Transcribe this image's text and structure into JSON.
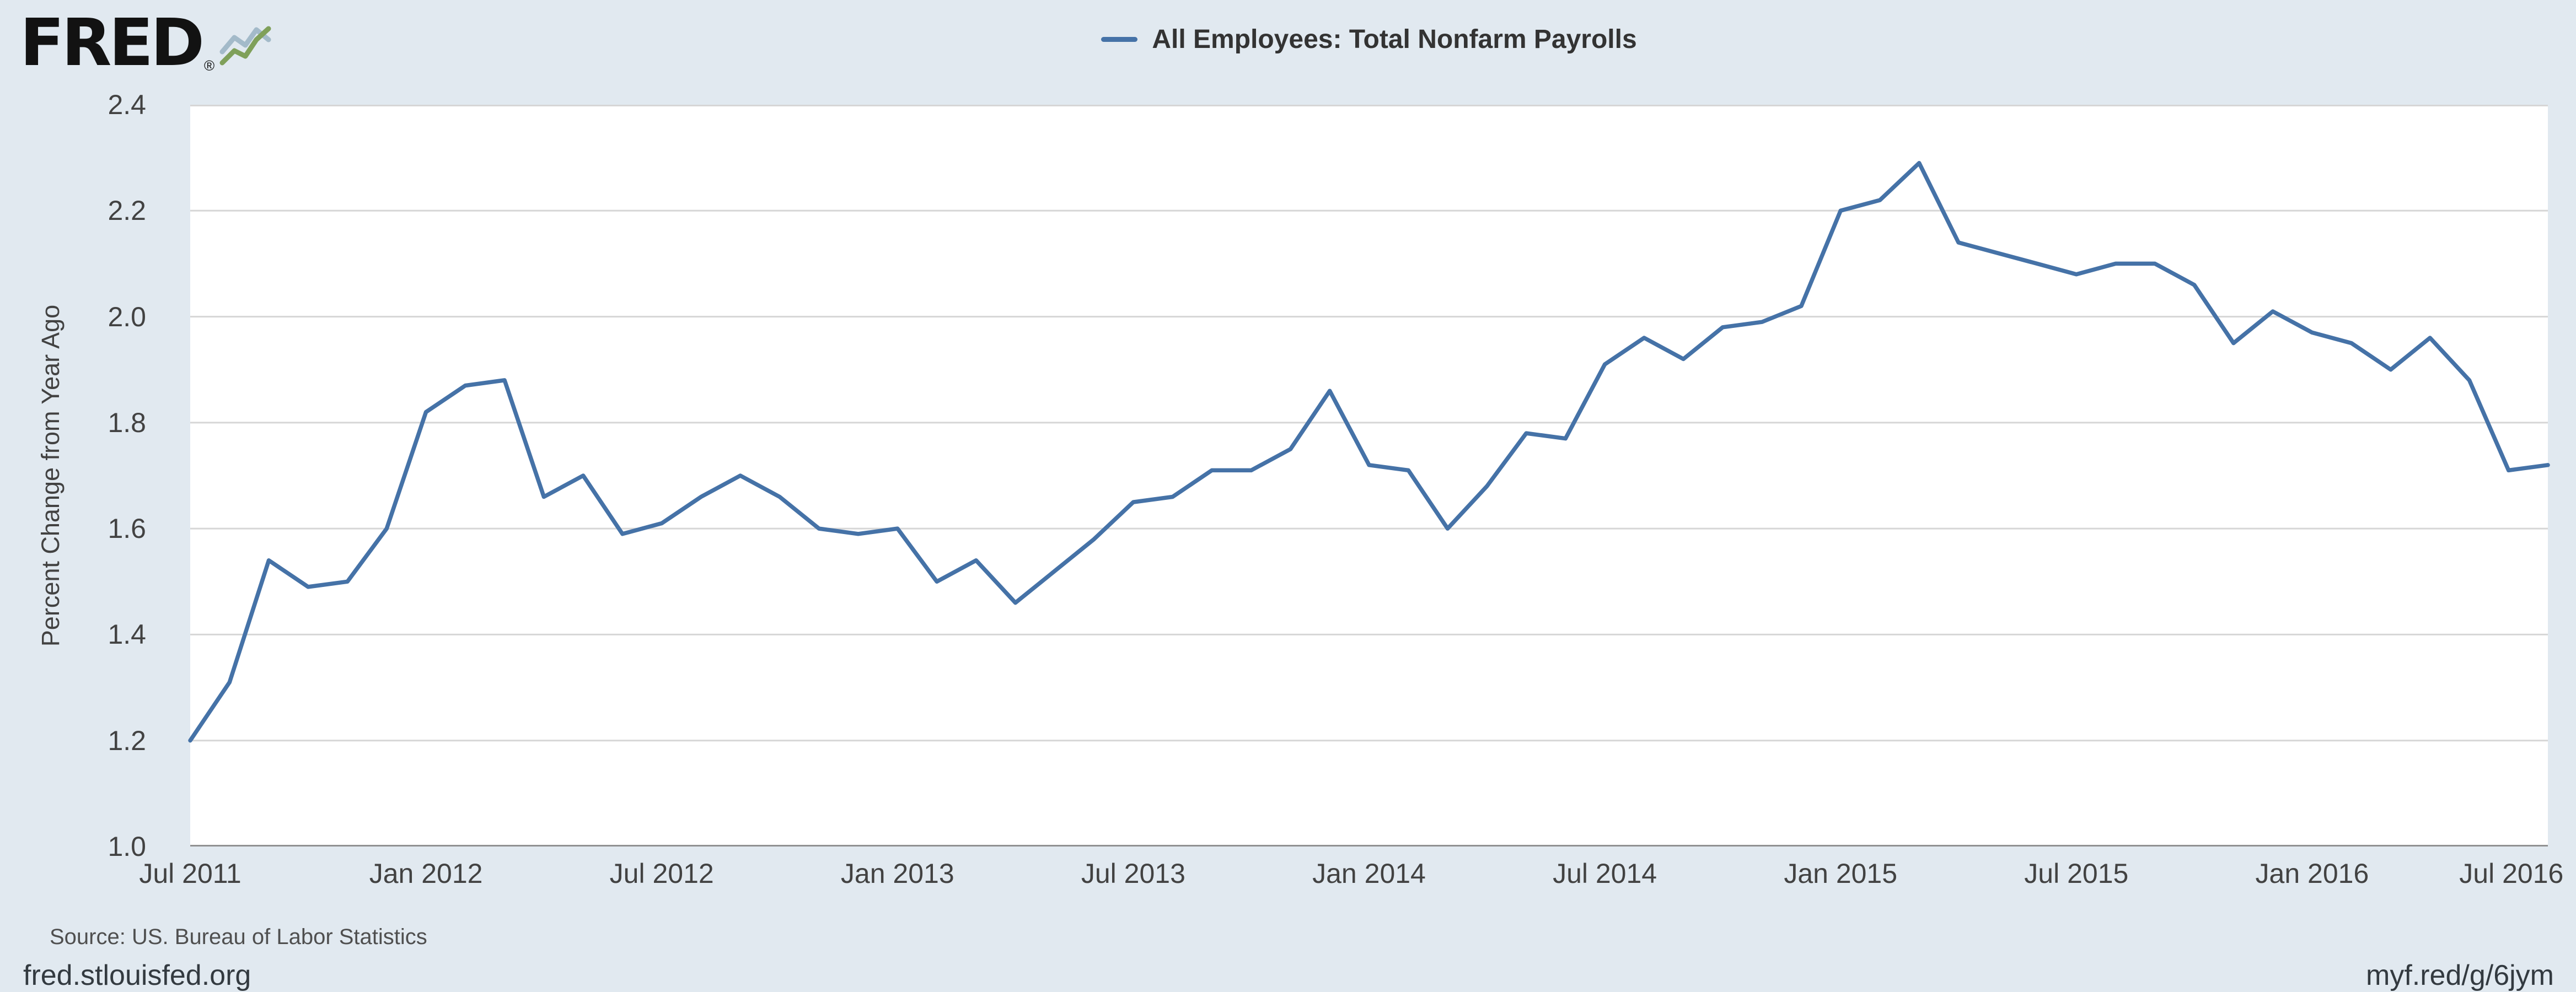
{
  "brand": {
    "logo_text": "FRED",
    "registered_mark": "®",
    "logo_icon": "sparkline-chart-icon"
  },
  "footer": {
    "source": "Source: US. Bureau of Labor Statistics",
    "site": "fred.stlouisfed.org",
    "short_url": "myf.red/g/6jym"
  },
  "colors": {
    "background": "#e1e9f0",
    "plot_background": "#ffffff",
    "line": "#4572a7",
    "grid": "#d6d6d6",
    "axis": "#919191",
    "text": "#424242"
  },
  "chart_data": {
    "type": "line",
    "title": "All Employees: Total Nonfarm Payrolls",
    "xlabel": "",
    "ylabel": "Percent Change from Year Ago",
    "ylim": [
      1.0,
      2.4
    ],
    "yticks": [
      1.0,
      1.2,
      1.4,
      1.6,
      1.8,
      2.0,
      2.2,
      2.4
    ],
    "xtick_labels": [
      "Jul 2011",
      "Jan 2012",
      "Jul 2012",
      "Jan 2013",
      "Jul 2013",
      "Jan 2014",
      "Jul 2014",
      "Jan 2015",
      "Jul 2015",
      "Jan 2016",
      "Jul 2016"
    ],
    "x_start": "Jul 2011",
    "x_end": "Jul 2016",
    "x_frequency": "monthly",
    "grid": "horizontal",
    "legend_position": "top-center",
    "series": [
      {
        "name": "All Employees: Total Nonfarm Payrolls",
        "color": "#4572a7",
        "values": [
          1.2,
          1.31,
          1.54,
          1.49,
          1.5,
          1.6,
          1.82,
          1.87,
          1.88,
          1.66,
          1.7,
          1.59,
          1.61,
          1.66,
          1.7,
          1.66,
          1.6,
          1.59,
          1.6,
          1.5,
          1.54,
          1.46,
          1.52,
          1.58,
          1.65,
          1.66,
          1.71,
          1.71,
          1.75,
          1.86,
          1.72,
          1.71,
          1.6,
          1.68,
          1.78,
          1.77,
          1.91,
          1.96,
          1.92,
          1.98,
          1.99,
          2.02,
          2.2,
          2.22,
          2.29,
          2.14,
          2.12,
          2.1,
          2.08,
          2.1,
          2.1,
          2.06,
          1.95,
          2.01,
          1.97,
          1.95,
          1.9,
          1.96,
          1.88,
          1.71,
          1.72
        ]
      }
    ]
  }
}
